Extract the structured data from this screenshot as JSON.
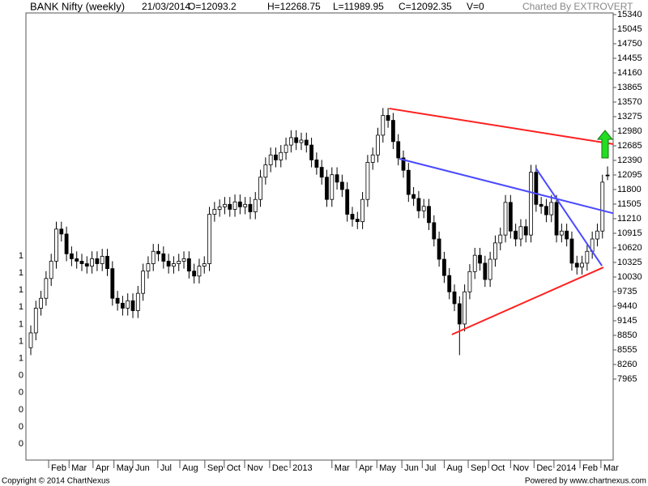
{
  "chart_data": {
    "type": "candlestick",
    "title": "BANK Nifty (weekly)",
    "header": [
      "21/03/2014",
      "O=12093.2",
      "H=12268.75",
      "L=11989.95",
      "C=12092.35",
      "V=0"
    ],
    "credit": "Charted By EXTROVERT",
    "footer_left": "Copyright © 2014 ChartNexus",
    "footer_right": "Powered by www.chartnexus.com",
    "open": [
      8600,
      8900,
      9400,
      9600,
      10000,
      10350,
      11000,
      10900,
      10500,
      10400,
      10350,
      10300,
      10250,
      10400,
      10300,
      10450,
      10200,
      9600,
      9500,
      9400,
      9550,
      9350,
      9700,
      10150,
      10300,
      10550,
      10500,
      10350,
      10250,
      10300,
      10350,
      10400,
      10150,
      10050,
      10250,
      10300,
      11300,
      11400,
      11450,
      11500,
      11400,
      11550,
      11450,
      11500,
      11350,
      11600,
      12050,
      12300,
      12500,
      12400,
      12550,
      12700,
      12850,
      12750,
      12800,
      12700,
      12400,
      12250,
      12050,
      11600,
      12100,
      11950,
      11800,
      11300,
      11200,
      11150,
      11600,
      12350,
      12500,
      12900,
      13300,
      13200,
      12770,
      12440,
      12190,
      11700,
      11620,
      11370,
      11460,
      11130,
      10800,
      10390,
      10060,
      9730,
      9490,
      9080,
      9730,
      10140,
      10470,
      10310,
      9980,
      10390,
      10720,
      10880,
      11540,
      10960,
      10800,
      11050,
      10880,
      12150,
      11500,
      11460,
      11290,
      11540,
      10880,
      10960,
      10800,
      10310,
      10230,
      10310,
      10550,
      10800,
      10960,
      12093.2
    ],
    "high": [
      9050,
      9550,
      9750,
      10150,
      10500,
      11150,
      11150,
      11050,
      10650,
      10550,
      10500,
      10450,
      10550,
      10550,
      10600,
      10600,
      10350,
      9750,
      9650,
      9700,
      9700,
      9850,
      10300,
      10450,
      10700,
      10700,
      10650,
      10500,
      10450,
      10500,
      10550,
      10550,
      10300,
      10400,
      10450,
      11450,
      11550,
      11600,
      11650,
      11650,
      11700,
      11700,
      11650,
      11650,
      11750,
      12200,
      12450,
      12650,
      12650,
      12700,
      12850,
      13000,
      13000,
      12950,
      12950,
      12850,
      12550,
      12400,
      12200,
      12250,
      12250,
      12100,
      11950,
      11450,
      11350,
      11750,
      12500,
      12650,
      13050,
      13450,
      13450,
      13350,
      12920,
      12590,
      12340,
      11850,
      11770,
      11610,
      11610,
      11280,
      10950,
      10540,
      10210,
      9880,
      9640,
      9880,
      10290,
      10620,
      10620,
      10460,
      10540,
      10870,
      11030,
      11690,
      11690,
      11110,
      11200,
      11200,
      12300,
      12300,
      11650,
      11610,
      11690,
      11690,
      11110,
      11110,
      10950,
      10460,
      10460,
      10700,
      10950,
      11110,
      12100,
      12268.75
    ],
    "low": [
      8450,
      8750,
      9250,
      9450,
      9850,
      10200,
      10750,
      10350,
      10250,
      10200,
      10150,
      10100,
      10100,
      10150,
      10150,
      10050,
      9450,
      9350,
      9250,
      9250,
      9200,
      9200,
      9550,
      10000,
      10150,
      10350,
      10200,
      10100,
      10100,
      10150,
      10200,
      10000,
      9900,
      9900,
      10100,
      10150,
      11150,
      11250,
      11300,
      11250,
      11250,
      11300,
      11300,
      11200,
      11200,
      11450,
      11900,
      12150,
      12250,
      12250,
      12400,
      12550,
      12600,
      12600,
      12550,
      12250,
      12100,
      11900,
      11450,
      11450,
      11800,
      11650,
      11150,
      11050,
      11000,
      11000,
      11450,
      12200,
      12350,
      12750,
      13050,
      12620,
      12290,
      12040,
      11550,
      11470,
      11220,
      11220,
      10980,
      10650,
      10240,
      9910,
      9580,
      9340,
      8450,
      8930,
      9580,
      9990,
      10160,
      9830,
      9830,
      10240,
      10570,
      10730,
      10810,
      10650,
      10650,
      10730,
      10730,
      11350,
      11310,
      11140,
      11140,
      10730,
      10730,
      10650,
      10160,
      10080,
      10080,
      10160,
      10400,
      10650,
      10810,
      11989.95
    ],
    "close": [
      8900,
      9400,
      9600,
      10000,
      10350,
      11000,
      10900,
      10500,
      10400,
      10350,
      10300,
      10250,
      10400,
      10300,
      10450,
      10200,
      9600,
      9500,
      9400,
      9550,
      9350,
      9700,
      10150,
      10300,
      10550,
      10500,
      10350,
      10250,
      10300,
      10350,
      10400,
      10150,
      10050,
      10250,
      10300,
      11300,
      11400,
      11450,
      11500,
      11400,
      11550,
      11450,
      11500,
      11350,
      11600,
      12050,
      12300,
      12500,
      12400,
      12550,
      12700,
      12850,
      12750,
      12800,
      12700,
      12400,
      12250,
      12050,
      11600,
      12100,
      11950,
      11800,
      11300,
      11200,
      11150,
      11600,
      12350,
      12500,
      12900,
      13300,
      13200,
      12770,
      12440,
      12190,
      11700,
      11620,
      11370,
      11460,
      11130,
      10800,
      10390,
      10060,
      9730,
      9490,
      9080,
      9730,
      10140,
      10470,
      10310,
      9980,
      10390,
      10720,
      10880,
      11540,
      10960,
      10800,
      11050,
      10880,
      12150,
      11500,
      11460,
      11290,
      11540,
      10880,
      10960,
      10800,
      10310,
      10230,
      10310,
      10550,
      10800,
      10960,
      11950,
      12092.35
    ],
    "up_color": "#ffffff",
    "down_color": "#000000",
    "trendlines": [
      {
        "color": "#ff2020",
        "x": [
          70.2,
          114.1
        ],
        "y": [
          13440,
          12720
        ]
      },
      {
        "color": "#ff2020",
        "x": [
          82.5,
          112.2
        ],
        "y": [
          8866,
          10226
        ]
      },
      {
        "color": "#4a4aff",
        "x": [
          72.2,
          114.1
        ],
        "y": [
          12423,
          11320
        ]
      },
      {
        "color": "#4a4aff",
        "x": [
          99,
          111.9
        ],
        "y": [
          12226,
          10259
        ]
      }
    ],
    "xlim": [
      -0.95,
      114.1
    ],
    "xticks": [
      {
        "value": 3.5,
        "label": "Feb"
      },
      {
        "value": 7.5,
        "label": "Mar"
      },
      {
        "value": 12.2,
        "label": "Apr"
      },
      {
        "value": 16.3,
        "label": "May"
      },
      {
        "value": 20,
        "label": "Jun"
      },
      {
        "value": 24.9,
        "label": "Jul"
      },
      {
        "value": 29.2,
        "label": "Aug"
      },
      {
        "value": 34.1,
        "label": "Sep"
      },
      {
        "value": 37.9,
        "label": "Oct"
      },
      {
        "value": 41.9,
        "label": "Nov"
      },
      {
        "value": 46.8,
        "label": "Dec"
      },
      {
        "value": 50.8,
        "label": "2013"
      },
      {
        "value": 59,
        "label": "Mar"
      },
      {
        "value": 63.8,
        "label": "Apr"
      },
      {
        "value": 67.8,
        "label": "May"
      },
      {
        "value": 72.7,
        "label": "Jun"
      },
      {
        "value": 76.7,
        "label": "Jul"
      },
      {
        "value": 81,
        "label": "Aug"
      },
      {
        "value": 85.7,
        "label": "Sep"
      },
      {
        "value": 89.7,
        "label": "Oct"
      },
      {
        "value": 94,
        "label": "Nov"
      },
      {
        "value": 98.6,
        "label": "Dec"
      },
      {
        "value": 102.5,
        "label": "2014"
      },
      {
        "value": 107.6,
        "label": "Feb"
      },
      {
        "value": 111.7,
        "label": "Mar"
      }
    ],
    "ylim": [
      6326,
      15373
    ],
    "yticks": [
      15340,
      15045,
      14750,
      14455,
      14160,
      13865,
      13570,
      13275,
      12980,
      12685,
      12390,
      12095,
      11800,
      11505,
      11210,
      10915,
      10620,
      10325,
      10030,
      9735,
      9440,
      9145,
      8850,
      8555,
      8260,
      7965
    ],
    "left_axis_labels": [
      1,
      1,
      1,
      1,
      1,
      1,
      1,
      0,
      0,
      0,
      0,
      0
    ]
  }
}
